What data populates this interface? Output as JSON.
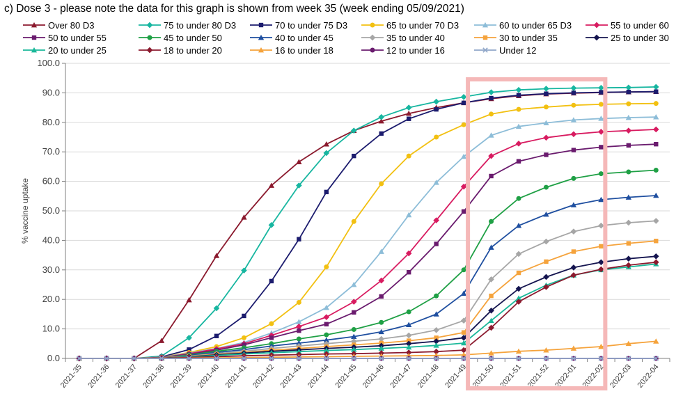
{
  "chart_data": {
    "type": "line",
    "title": "c) Dose 3 - please note the data for this graph is shown from week 35 (week ending 05/09/2021)",
    "ylabel": "% vaccine uptake",
    "xlabel": "",
    "ylim": [
      0,
      100
    ],
    "yticks": [
      "0.0",
      "10.0",
      "20.0",
      "30.0",
      "40.0",
      "50.0",
      "60.0",
      "70.0",
      "80.0",
      "90.0",
      "100.0"
    ],
    "categories": [
      "2021-35",
      "2021-36",
      "2021-37",
      "2021-38",
      "2021-39",
      "2021-40",
      "2021-41",
      "2021-42",
      "2021-43",
      "2021-44",
      "2021-45",
      "2021-46",
      "2021-47",
      "2021-48",
      "2021-49",
      "2021-50",
      "2021-51",
      "2021-52",
      "2022-01",
      "2022-02",
      "2022-03",
      "2022-04"
    ],
    "grid": "horizontal",
    "legend_position": "top",
    "highlight_box": {
      "from_category": "2021-49",
      "to_category": "2022-02",
      "color": "#f5b8b8"
    },
    "series": [
      {
        "name": "Over 80 D3",
        "color": "#8b1a2e",
        "marker": "triangle",
        "values": [
          0,
          0,
          0,
          6.0,
          19.8,
          34.8,
          47.8,
          58.6,
          66.6,
          72.6,
          77.2,
          80.4,
          83.0,
          85.0,
          86.6,
          88.0,
          89.0,
          89.6,
          89.9,
          90.1,
          90.3,
          90.4
        ]
      },
      {
        "name": "75 to under 80 D3",
        "color": "#17b6a0",
        "marker": "diamond",
        "values": [
          0,
          0,
          0,
          0.8,
          7.0,
          17.0,
          29.8,
          45.2,
          58.6,
          69.6,
          77.2,
          81.8,
          85.0,
          87.0,
          88.6,
          90.2,
          91.0,
          91.4,
          91.6,
          91.7,
          91.8,
          92.0
        ]
      },
      {
        "name": "70 to under 75 D3",
        "color": "#1c1c6e",
        "marker": "square",
        "values": [
          0,
          0,
          0,
          0.5,
          3.0,
          7.6,
          14.4,
          26.2,
          40.4,
          56.4,
          68.6,
          76.2,
          81.2,
          84.4,
          86.6,
          88.2,
          89.2,
          89.7,
          90.0,
          90.2,
          90.3,
          90.4
        ]
      },
      {
        "name": "65 to under 70 D3",
        "color": "#f2c011",
        "marker": "circle",
        "values": [
          0,
          0,
          0,
          0.4,
          2.0,
          4.0,
          7.0,
          11.8,
          19.0,
          31.0,
          46.4,
          59.2,
          68.6,
          75.0,
          79.2,
          82.8,
          84.4,
          85.2,
          85.8,
          86.1,
          86.3,
          86.4
        ]
      },
      {
        "name": "60 to under 65 D3",
        "color": "#8dbdd8",
        "marker": "triangle",
        "values": [
          0,
          0,
          0,
          0.4,
          1.8,
          3.4,
          5.4,
          8.6,
          12.4,
          17.2,
          25.0,
          36.2,
          48.6,
          59.6,
          68.4,
          75.6,
          78.6,
          79.8,
          80.8,
          81.3,
          81.6,
          81.8
        ]
      },
      {
        "name": "55 to under 60",
        "color": "#d81b60",
        "marker": "diamond",
        "values": [
          0,
          0,
          0,
          0.3,
          1.6,
          3.2,
          5.0,
          7.8,
          10.8,
          14.0,
          19.2,
          26.4,
          35.6,
          46.8,
          58.2,
          68.6,
          72.8,
          74.8,
          76.0,
          76.8,
          77.2,
          77.6
        ]
      },
      {
        "name": "50 to under 55",
        "color": "#6a1b6e",
        "marker": "square",
        "values": [
          0,
          0,
          0,
          0.3,
          1.4,
          2.8,
          4.6,
          7.0,
          9.4,
          11.6,
          15.6,
          21.0,
          29.2,
          38.8,
          49.8,
          61.8,
          66.8,
          69.0,
          70.6,
          71.6,
          72.2,
          72.6
        ]
      },
      {
        "name": "45 to under 50",
        "color": "#1fa045",
        "marker": "circle",
        "values": [
          0,
          0,
          0,
          0.2,
          1.2,
          2.4,
          3.6,
          5.0,
          6.6,
          8.0,
          9.8,
          12.2,
          15.8,
          21.2,
          30.0,
          46.4,
          54.2,
          58.0,
          61.0,
          62.6,
          63.2,
          63.8
        ]
      },
      {
        "name": "40 to under 45",
        "color": "#1f4fa0",
        "marker": "triangle",
        "values": [
          0,
          0,
          0,
          0.2,
          1.0,
          2.0,
          3.0,
          4.2,
          5.2,
          6.2,
          7.4,
          9.0,
          11.4,
          15.0,
          22.0,
          37.6,
          45.0,
          48.8,
          52.0,
          53.8,
          54.6,
          55.2
        ]
      },
      {
        "name": "35 to under 40",
        "color": "#a6a6a6",
        "marker": "diamond",
        "values": [
          0,
          0,
          0,
          0.2,
          0.8,
          1.6,
          2.4,
          3.4,
          4.2,
          5.0,
          5.8,
          6.6,
          7.8,
          9.6,
          12.8,
          26.8,
          35.4,
          39.6,
          43.0,
          45.0,
          46.0,
          46.6
        ]
      },
      {
        "name": "30 to under 35",
        "color": "#f5a33c",
        "marker": "square",
        "values": [
          0,
          0,
          0,
          0.2,
          0.7,
          1.4,
          2.0,
          2.8,
          3.4,
          4.0,
          4.6,
          5.2,
          6.0,
          7.0,
          8.8,
          21.2,
          29.0,
          32.8,
          36.2,
          38.0,
          39.0,
          39.8
        ]
      },
      {
        "name": "25 to under 30",
        "color": "#14144f",
        "marker": "diamond",
        "values": [
          0,
          0,
          0,
          0.1,
          0.6,
          1.2,
          1.8,
          2.4,
          2.9,
          3.4,
          3.8,
          4.3,
          5.0,
          5.8,
          7.0,
          16.2,
          23.6,
          27.6,
          30.8,
          32.6,
          33.8,
          34.6
        ]
      },
      {
        "name": "20 to under 25",
        "color": "#1ab899",
        "marker": "triangle",
        "values": [
          0,
          0,
          0,
          0.1,
          0.5,
          1.0,
          1.5,
          1.9,
          2.3,
          2.7,
          3.0,
          3.4,
          3.8,
          4.4,
          5.2,
          12.8,
          20.4,
          24.8,
          28.2,
          30.0,
          31.0,
          32.0
        ]
      },
      {
        "name": "18 to under 20",
        "color": "#8b1a2e",
        "marker": "diamond",
        "values": [
          0,
          0,
          0,
          0.1,
          0.3,
          0.6,
          0.9,
          1.1,
          1.3,
          1.5,
          1.6,
          1.8,
          2.0,
          2.3,
          2.8,
          10.4,
          19.2,
          24.2,
          28.2,
          30.2,
          31.6,
          32.6
        ]
      },
      {
        "name": "16 to under 18",
        "color": "#f5a33c",
        "marker": "triangle",
        "values": [
          0,
          0,
          0,
          0,
          0.1,
          0.2,
          0.3,
          0.4,
          0.5,
          0.6,
          0.7,
          0.8,
          0.9,
          1.0,
          1.2,
          1.8,
          2.4,
          2.8,
          3.4,
          4.0,
          5.0,
          5.8
        ]
      },
      {
        "name": "12 to under 16",
        "color": "#6a1b6e",
        "marker": "circle",
        "values": [
          0,
          0,
          0,
          0,
          0,
          0,
          0,
          0,
          0,
          0,
          0,
          0,
          0,
          0,
          0,
          0,
          0,
          0,
          0,
          0,
          0,
          0
        ]
      },
      {
        "name": "Under 12",
        "color": "#8fa6c8",
        "marker": "cross",
        "values": [
          0,
          0,
          0,
          0,
          0,
          0,
          0,
          0,
          0,
          0,
          0,
          0,
          0,
          0,
          0,
          0,
          0,
          0,
          0,
          0,
          0,
          0
        ]
      }
    ]
  }
}
